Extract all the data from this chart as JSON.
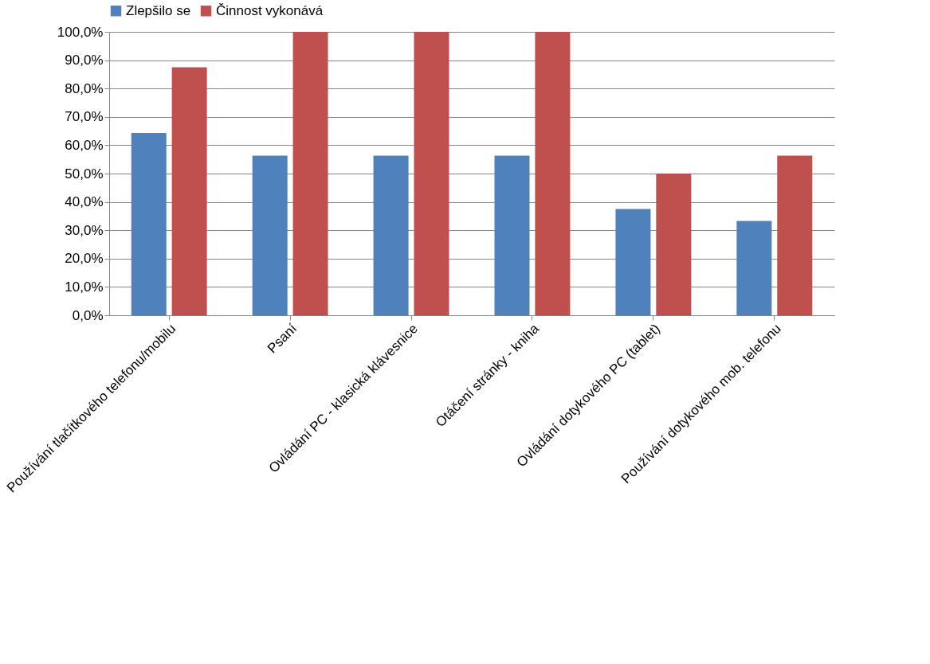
{
  "chart_data": {
    "type": "bar",
    "categories": [
      "Používání tlačítkového telefonu/mobilu",
      "Psaní",
      "Ovládání PC - klasická klávesnice",
      "Otáčení stránky - kniha",
      "Ovládání dotykového PC (tablet)",
      "Používání dotykového mob. telefonu"
    ],
    "series": [
      {
        "name": "Zlepšilo se",
        "color": "#4f81bd",
        "values": [
          64.3,
          56.3,
          56.3,
          56.3,
          37.5,
          33.3
        ]
      },
      {
        "name": "Činnost vykonává",
        "color": "#c0504d",
        "values": [
          87.5,
          100,
          100,
          100,
          50,
          56.3
        ]
      }
    ],
    "ylim": [
      0,
      100
    ],
    "yticks": [
      {
        "value": 0,
        "label": "0,0%"
      },
      {
        "value": 10,
        "label": "10,0%"
      },
      {
        "value": 20,
        "label": "20,0%"
      },
      {
        "value": 30,
        "label": "30,0%"
      },
      {
        "value": 40,
        "label": "40,0%"
      },
      {
        "value": 50,
        "label": "50,0%"
      },
      {
        "value": 60,
        "label": "60,0%"
      },
      {
        "value": 70,
        "label": "70,0%"
      },
      {
        "value": 80,
        "label": "80,0%"
      },
      {
        "value": 90,
        "label": "90,0%"
      },
      {
        "value": 100,
        "label": "100,0%"
      }
    ],
    "grid": "y",
    "legend": "top"
  }
}
